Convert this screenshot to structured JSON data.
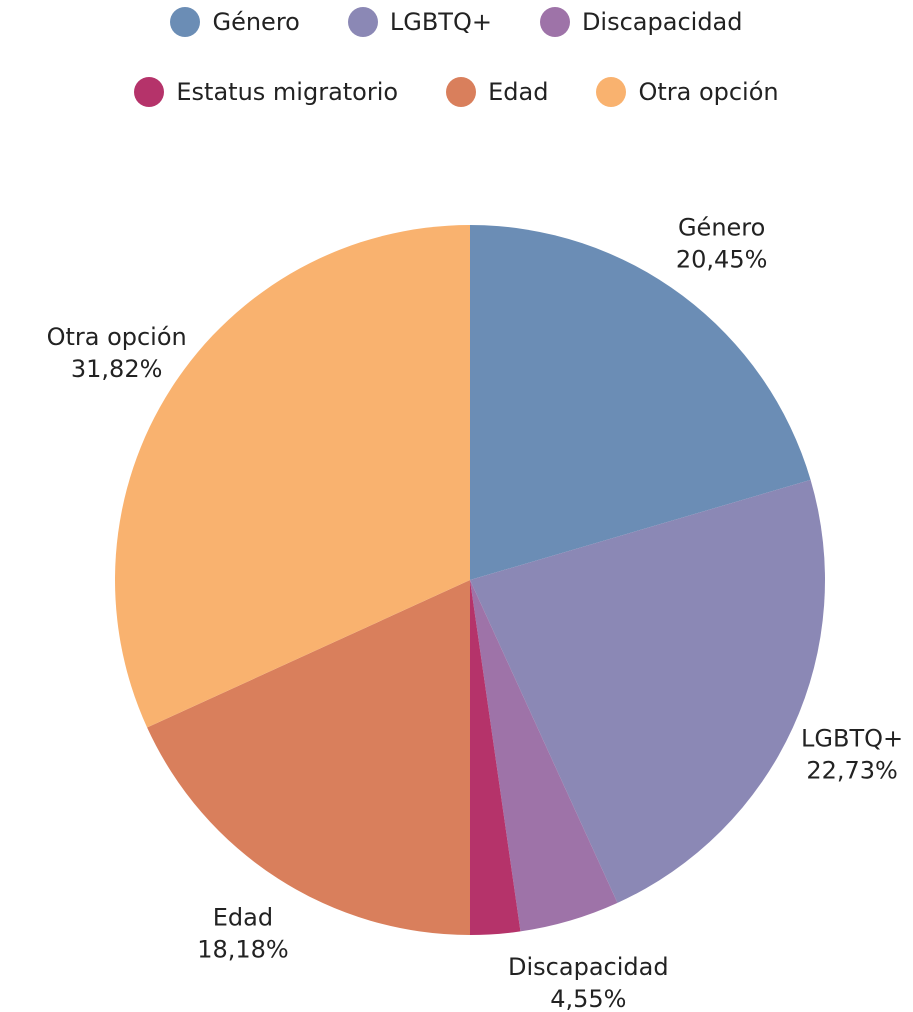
{
  "chart_data": {
    "type": "pie",
    "categories": [
      "Género",
      "LGBTQ+",
      "Discapacidad",
      "Estatus migratorio",
      "Edad",
      "Otra opción"
    ],
    "values": [
      20.45,
      22.73,
      4.55,
      2.27,
      18.18,
      31.82
    ],
    "value_labels": [
      "20,45%",
      "22,73%",
      "4,55%",
      null,
      "18,18%",
      "31,82%"
    ],
    "colors": [
      "#6b8db5",
      "#8b88b5",
      "#9e73a8",
      "#b5336a",
      "#d97f5c",
      "#f9b26f"
    ],
    "legend": "top"
  }
}
